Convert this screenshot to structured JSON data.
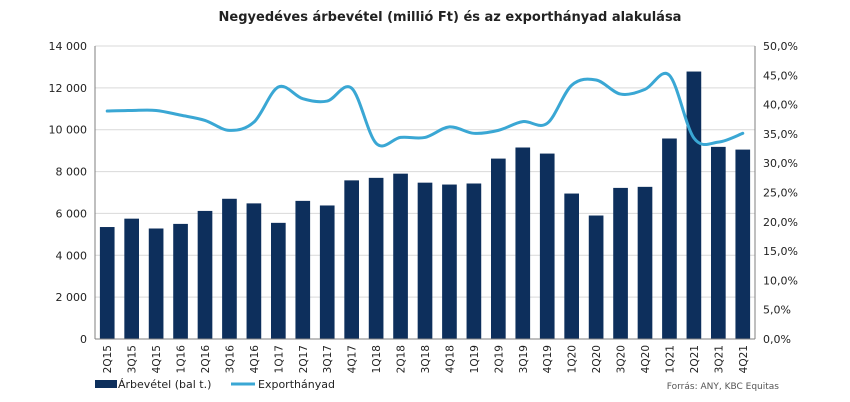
{
  "chart_data": {
    "type": "bar",
    "title": "Negyedéves árbevétel (millió Ft) és az exporthányad alakulása",
    "categories": [
      "2Q15",
      "3Q15",
      "4Q15",
      "1Q16",
      "2Q16",
      "3Q16",
      "4Q16",
      "1Q17",
      "2Q17",
      "3Q17",
      "4Q17",
      "1Q18",
      "2Q18",
      "3Q18",
      "4Q18",
      "1Q19",
      "2Q19",
      "3Q19",
      "4Q19",
      "1Q20",
      "2Q20",
      "3Q20",
      "4Q20",
      "1Q21",
      "2Q21",
      "3Q21",
      "4Q21"
    ],
    "series": [
      {
        "name": "Árbevétel (bal t.)",
        "type": "bar",
        "axis": "left",
        "color": "#0d2f5c",
        "values": [
          5350,
          5750,
          5280,
          5500,
          6120,
          6700,
          6480,
          5550,
          6600,
          6380,
          7580,
          7700,
          7900,
          7470,
          7380,
          7430,
          8620,
          9150,
          8860,
          6950,
          5900,
          7220,
          7270,
          9580,
          12780,
          9180,
          9050
        ]
      },
      {
        "name": "Exporthányad",
        "type": "line",
        "axis": "right",
        "color": "#3aa7d4",
        "values": [
          38.9,
          39.0,
          39.0,
          38.2,
          37.3,
          35.6,
          37.0,
          43.0,
          41.0,
          40.6,
          42.8,
          33.4,
          34.4,
          34.4,
          36.2,
          35.1,
          35.6,
          37.1,
          36.8,
          43.3,
          44.2,
          41.8,
          42.6,
          45.0,
          34.3,
          33.6,
          35.1
        ]
      }
    ],
    "y_left": {
      "min": 0,
      "max": 14000,
      "step": 2000,
      "ticks": [
        "0",
        "2 000",
        "4 000",
        "6 000",
        "8 000",
        "10 000",
        "12 000",
        "14 000"
      ]
    },
    "y_right": {
      "min": 0,
      "max": 50,
      "step": 5,
      "ticks": [
        "0,0%",
        "5,0%",
        "10,0%",
        "15,0%",
        "20,0%",
        "25,0%",
        "30,0%",
        "35,0%",
        "40,0%",
        "45,0%",
        "50,0%"
      ]
    },
    "grid": "horizontal",
    "legend_position": "bottom-left",
    "source": "Forrás: ANY, KBC Equitas"
  }
}
